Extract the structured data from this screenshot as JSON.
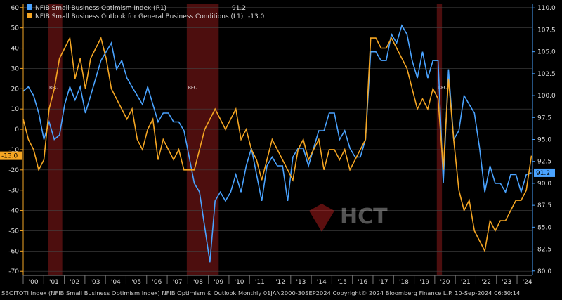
{
  "chart_data": {
    "type": "line",
    "title": "",
    "footer": "SBOITOTI Index (NFIB Small Business Optimism Index) NFIB Optimism & Outlook  Monthly 01JAN2000-30SEP2024  Copyright© 2024 Bloomberg Finance L.P.   10-Sep-2024 06:30:14",
    "x_ticks": [
      "'00",
      "'01",
      "'02",
      "'03",
      "'04",
      "'05",
      "'06",
      "'07",
      "'08",
      "'09",
      "'10",
      "'11",
      "'12",
      "'13",
      "'14",
      "'15",
      "'16",
      "'17",
      "'18",
      "'19",
      "'20",
      "'21",
      "'22",
      "'23",
      "'24"
    ],
    "x_range": [
      2000.0,
      2024.75
    ],
    "left_axis": {
      "ticks": [
        60,
        50,
        40,
        30,
        20,
        10,
        0,
        -10,
        -20,
        -30,
        -40,
        -50,
        -60,
        -70
      ],
      "range": [
        -72,
        62
      ]
    },
    "right_axis": {
      "ticks": [
        110.0,
        107.5,
        105.0,
        102.5,
        100.0,
        97.5,
        95.0,
        92.5,
        90.0,
        87.5,
        85.0,
        82.5,
        80.0
      ],
      "range": [
        79.5,
        110.5
      ]
    },
    "recessions": [
      [
        2001.2,
        2001.9
      ],
      [
        2007.95,
        2009.5
      ],
      [
        2020.1,
        2020.35
      ]
    ],
    "recession_label": "REC",
    "series": [
      {
        "name": "NFIB Small Business Optimism Index  (R1)",
        "last": "91.2",
        "axis": "right",
        "color": "#4aa3ff",
        "values": [
          100.5,
          101,
          100,
          98,
          95,
          97,
          95,
          95.5,
          99,
          101,
          99.5,
          101,
          98,
          100,
          102,
          104,
          105,
          106,
          103,
          104,
          102,
          101,
          100,
          99,
          101,
          99,
          97,
          98,
          98,
          97,
          97,
          96,
          93,
          90,
          89,
          85,
          81,
          88,
          89,
          88,
          89,
          91,
          89,
          92,
          94,
          91,
          88,
          92,
          93,
          92,
          92,
          88,
          93,
          94,
          94,
          92,
          94,
          96,
          96,
          98,
          98,
          95,
          96,
          94,
          93,
          93,
          95,
          105,
          105,
          104,
          104,
          107,
          106,
          108,
          107,
          104,
          102,
          105,
          102,
          104,
          104,
          90,
          103,
          95,
          96,
          100,
          99,
          98,
          94,
          89,
          92,
          90,
          90,
          89,
          91,
          91,
          89,
          91,
          91.2
        ]
      },
      {
        "name": "NFIB Small Business Outlook for General Business Conditions (L1)",
        "last": "-13.0",
        "axis": "left",
        "color": "#f5a623",
        "values": [
          5,
          -5,
          -10,
          -20,
          -15,
          10,
          20,
          35,
          40,
          45,
          25,
          35,
          20,
          35,
          40,
          45,
          35,
          20,
          15,
          10,
          5,
          10,
          -5,
          -10,
          0,
          5,
          -15,
          -5,
          -10,
          -15,
          -10,
          -20,
          -20,
          -20,
          -10,
          0,
          5,
          10,
          5,
          0,
          5,
          10,
          -5,
          0,
          -10,
          -15,
          -25,
          -15,
          -5,
          -10,
          -15,
          -20,
          -25,
          -10,
          -5,
          -15,
          -10,
          -5,
          -20,
          -10,
          -10,
          -15,
          -10,
          -20,
          -15,
          -10,
          -5,
          45,
          45,
          40,
          40,
          45,
          40,
          35,
          30,
          20,
          10,
          15,
          10,
          20,
          15,
          -20,
          25,
          -5,
          -30,
          -40,
          -35,
          -50,
          -55,
          -60,
          -45,
          -50,
          -45,
          -45,
          -40,
          -35,
          -35,
          -30,
          -13.0
        ]
      }
    ],
    "watermark": "HCT"
  }
}
